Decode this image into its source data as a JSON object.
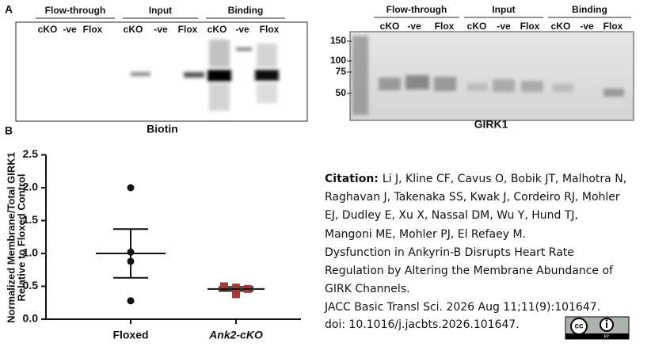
{
  "panel_a": {
    "label": "A",
    "left_blot": {
      "headers": [
        "Flow-through",
        "Input",
        "Binding"
      ],
      "lanes": [
        "cKO",
        "-ve",
        "Flox",
        "cKO",
        "-ve",
        "Flox",
        "cKO",
        "-ve",
        "Flox"
      ],
      "caption": "Biotin"
    },
    "right_blot": {
      "headers": [
        "Flow-through",
        "Input",
        "Binding"
      ],
      "lanes": [
        "cKO",
        "-ve",
        "Flox",
        "cKO",
        "-ve",
        "Flox",
        "cKO",
        "-ve",
        "Flox"
      ],
      "markers": [
        150,
        100,
        75,
        50
      ],
      "caption": "GIRK1"
    }
  },
  "chart_data": {
    "type": "scatter",
    "panel_label": "B",
    "ylabel": [
      "Normalized Membrane/Total GIRK1",
      "Relative to Floxed Control"
    ],
    "categories": [
      "Floxed",
      "Ank2-cKO"
    ],
    "values": [
      [
        2.0,
        1.02,
        0.88,
        0.28
      ],
      [
        0.5,
        0.48,
        0.46,
        0.38
      ]
    ],
    "colors": [
      "#111111",
      "#a33a3a"
    ],
    "markers": [
      "circle",
      "square"
    ],
    "mean": [
      1.0,
      0.46
    ],
    "sem": [
      0.37,
      0.03
    ],
    "ylim": [
      0,
      2.5
    ],
    "yticks": [
      {
        "value": 0,
        "label": "0.0"
      },
      0.5,
      {
        "value": 1,
        "label": "1.0"
      },
      1.5,
      {
        "value": 2,
        "label": "2.0"
      },
      2.5
    ]
  },
  "citation": {
    "label": "Citation:",
    "lines": [
      "Li J, Kline CF, Cavus O, Bobik JT, Malhotra N,",
      "Raghavan J, Takenaka SS, Kwak J, Cordeiro RJ, Mohler",
      "EJ, Dudley E, Xu X, Nassal DM, Wu Y, Hund TJ,",
      "Mangoni ME, Mohler PJ, El Refaey M.",
      "Dysfunction in Ankyrin-B Disrupts Heart Rate",
      "Regulation by Altering the Membrane Abundance of",
      "GIRK Channels.",
      "JACC Basic Transl Sci. 2026 Aug 11;11(9):101647.",
      "doi: 10.1016/j.jacbts.2026.101647."
    ],
    "badge": {
      "cc": "cc",
      "by": "BY"
    }
  }
}
